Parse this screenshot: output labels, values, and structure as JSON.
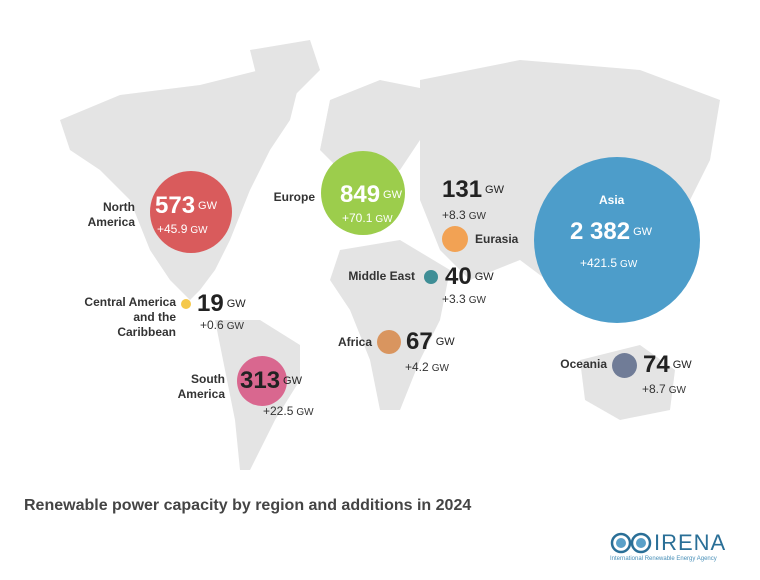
{
  "title": "Renewable power capacity by region and additions in 2024",
  "unit": "GW",
  "logo": {
    "name": "IRENA",
    "subtitle": "International Renewable Energy Agency"
  },
  "chart_data": {
    "type": "bubble-map",
    "title": "Renewable power capacity by region and additions in 2024",
    "unit": "GW",
    "regions": [
      {
        "name": "North America",
        "capacity": "573",
        "addition": "+45.9",
        "color": "#d95b5c"
      },
      {
        "name": "Europe",
        "capacity": "849",
        "addition": "+70.1",
        "color": "#9ccd4c"
      },
      {
        "name": "Asia",
        "capacity": "2 382",
        "addition": "+421.5",
        "color": "#4d9dca"
      },
      {
        "name": "Eurasia",
        "capacity": "131",
        "addition": "+8.3",
        "color": "#f2a254"
      },
      {
        "name": "Middle East",
        "capacity": "40",
        "addition": "+3.3",
        "color": "#3f8e96"
      },
      {
        "name": "Central America and the Caribbean",
        "capacity": "19",
        "addition": "+0.6",
        "color": "#f5c84a"
      },
      {
        "name": "South America",
        "capacity": "313",
        "addition": "+22.5",
        "color": "#d9678f"
      },
      {
        "name": "Africa",
        "capacity": "67",
        "addition": "+4.2",
        "color": "#d9955f"
      },
      {
        "name": "Oceania",
        "capacity": "74",
        "addition": "+8.7",
        "color": "#707c97"
      }
    ]
  }
}
